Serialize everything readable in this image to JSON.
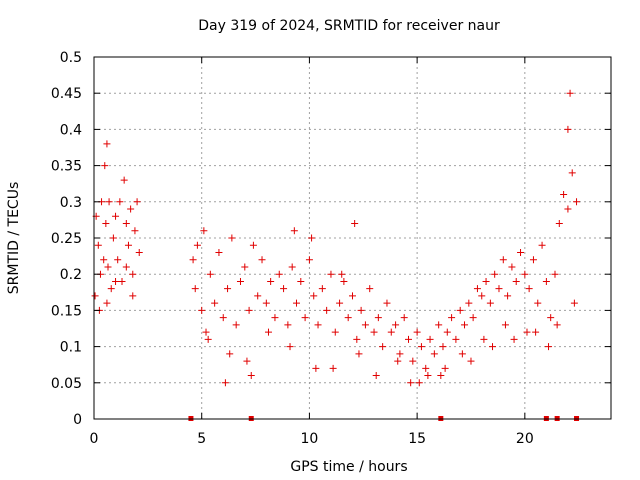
{
  "chart_data": {
    "type": "scatter",
    "title": "Day 319 of 2024, SRMTID for receiver naur",
    "xlabel": "GPS time / hours",
    "ylabel": "SRMTID / TECUs",
    "xlim": [
      0,
      24
    ],
    "ylim": [
      0,
      0.5
    ],
    "x_ticks": [
      0,
      5,
      10,
      15,
      20
    ],
    "x_tick_labels": [
      "0",
      "5",
      "10",
      "15",
      "20"
    ],
    "y_ticks": [
      0,
      0.05,
      0.1,
      0.15,
      0.2,
      0.25,
      0.3,
      0.35,
      0.4,
      0.45,
      0.5
    ],
    "y_tick_labels": [
      "0",
      "0.05",
      "0.1",
      "0.15",
      "0.2",
      "0.25",
      "0.3",
      "0.35",
      "0.4",
      "0.45",
      "0.5"
    ],
    "grid": true,
    "marker": "plus",
    "color": "#e00000",
    "series": [
      {
        "name": "SRMTID",
        "x": [
          0.05,
          0.1,
          0.2,
          0.3,
          0.35,
          0.45,
          0.5,
          0.55,
          0.6,
          0.65,
          0.7,
          0.8,
          0.9,
          1.0,
          1.1,
          1.2,
          1.3,
          1.4,
          1.5,
          1.6,
          1.7,
          1.8,
          1.9,
          2.0,
          2.1,
          0.25,
          0.6,
          1.0,
          1.5,
          1.8,
          4.6,
          4.7,
          4.8,
          5.0,
          5.1,
          5.2,
          5.4,
          5.6,
          5.8,
          6.0,
          6.2,
          6.4,
          6.6,
          6.8,
          7.0,
          7.2,
          7.4,
          7.6,
          7.8,
          8.0,
          8.2,
          8.4,
          8.6,
          8.8,
          9.0,
          9.2,
          9.4,
          9.6,
          9.8,
          10.0,
          10.2,
          10.4,
          10.6,
          10.8,
          11.0,
          11.2,
          11.4,
          11.6,
          11.8,
          12.0,
          12.2,
          12.4,
          12.6,
          12.8,
          13.0,
          13.2,
          13.4,
          13.6,
          13.8,
          14.0,
          14.2,
          14.4,
          14.6,
          14.8,
          15.0,
          15.2,
          15.4,
          15.6,
          15.8,
          16.0,
          16.2,
          16.4,
          16.6,
          16.8,
          17.0,
          17.2,
          17.4,
          17.6,
          17.8,
          18.0,
          18.2,
          18.4,
          18.6,
          18.8,
          19.0,
          19.2,
          19.4,
          19.6,
          19.8,
          20.0,
          20.2,
          20.4,
          20.6,
          20.8,
          21.0,
          21.2,
          21.4,
          21.6,
          21.8,
          22.0,
          22.2,
          22.4,
          5.3,
          6.3,
          7.1,
          8.1,
          9.1,
          10.1,
          11.1,
          12.1,
          13.1,
          14.1,
          15.1,
          16.1,
          17.1,
          18.1,
          19.1,
          20.1,
          21.1,
          22.1,
          6.1,
          7.3,
          9.3,
          10.3,
          11.5,
          12.3,
          14.7,
          15.5,
          16.3,
          17.5,
          18.5,
          19.5,
          20.5,
          21.5,
          22.0,
          22.3
        ],
        "y": [
          0.17,
          0.28,
          0.24,
          0.2,
          0.3,
          0.22,
          0.35,
          0.27,
          0.38,
          0.21,
          0.3,
          0.18,
          0.25,
          0.28,
          0.22,
          0.3,
          0.19,
          0.33,
          0.27,
          0.24,
          0.29,
          0.2,
          0.26,
          0.3,
          0.23,
          0.15,
          0.16,
          0.19,
          0.21,
          0.17,
          0.22,
          0.18,
          0.24,
          0.15,
          0.26,
          0.12,
          0.2,
          0.16,
          0.23,
          0.14,
          0.18,
          0.25,
          0.13,
          0.19,
          0.21,
          0.15,
          0.24,
          0.17,
          0.22,
          0.16,
          0.19,
          0.14,
          0.2,
          0.18,
          0.13,
          0.21,
          0.16,
          0.19,
          0.14,
          0.22,
          0.17,
          0.13,
          0.18,
          0.15,
          0.2,
          0.12,
          0.16,
          0.19,
          0.14,
          0.17,
          0.11,
          0.15,
          0.13,
          0.18,
          0.12,
          0.14,
          0.1,
          0.16,
          0.12,
          0.13,
          0.09,
          0.14,
          0.11,
          0.08,
          0.12,
          0.1,
          0.07,
          0.11,
          0.09,
          0.13,
          0.1,
          0.12,
          0.14,
          0.11,
          0.15,
          0.13,
          0.16,
          0.14,
          0.18,
          0.17,
          0.19,
          0.16,
          0.2,
          0.18,
          0.22,
          0.17,
          0.21,
          0.19,
          0.23,
          0.2,
          0.18,
          0.22,
          0.16,
          0.24,
          0.19,
          0.14,
          0.2,
          0.27,
          0.31,
          0.29,
          0.34,
          0.3,
          0.11,
          0.09,
          0.08,
          0.12,
          0.1,
          0.25,
          0.07,
          0.27,
          0.06,
          0.08,
          0.05,
          0.06,
          0.09,
          0.11,
          0.13,
          0.12,
          0.1,
          0.45,
          0.05,
          0.06,
          0.26,
          0.07,
          0.2,
          0.09,
          0.05,
          0.06,
          0.07,
          0.08,
          0.1,
          0.11,
          0.12,
          0.13,
          0.4,
          0.16
        ],
        "samples_near_zero_x": [
          4.5,
          7.3,
          16.1,
          21.0,
          21.5,
          22.4
        ]
      }
    ]
  }
}
